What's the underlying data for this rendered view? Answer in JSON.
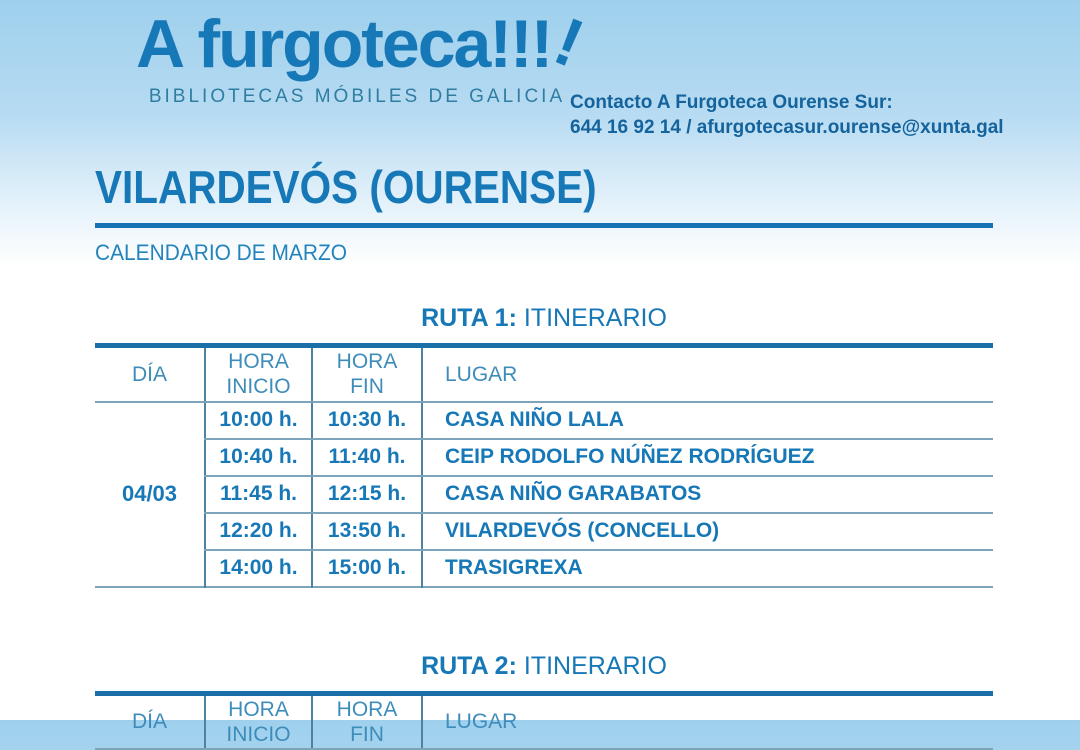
{
  "header": {
    "logo_text": "A furgoteca!!!",
    "logo_slant_mark": "!",
    "tagline": "BIBLIOTECAS MÓBILES DE GALICIA",
    "contact_label": "Contacto A Furgoteca Ourense Sur:",
    "contact_line2": "644 16 92 14 / afurgotecasur.ourense@xunta.gal"
  },
  "page": {
    "title": "VILARDEVÓS (OURENSE)",
    "subtitle": "CALENDARIO DE MARZO"
  },
  "routes": [
    {
      "heading_bold": "RUTA 1:",
      "heading_rest": " ITINERARIO",
      "columns": [
        "DÍA",
        "HORA\nINICIO",
        "HORA\nFIN",
        "LUGAR"
      ],
      "day": "04/03",
      "rows": [
        {
          "start": "10:00 h.",
          "end": "10:30 h.",
          "place": "CASA NIÑO LALA"
        },
        {
          "start": "10:40 h.",
          "end": "11:40 h.",
          "place": "CEIP RODOLFO NÚÑEZ RODRÍGUEZ"
        },
        {
          "start": "11:45 h.",
          "end": "12:15 h.",
          "place": "CASA NIÑO GARABATOS"
        },
        {
          "start": "12:20 h.",
          "end": "13:50 h.",
          "place": "VILARDEVÓS (CONCELLO)"
        },
        {
          "start": "14:00 h.",
          "end": "15:00 h.",
          "place": "TRASIGREXA"
        }
      ]
    },
    {
      "heading_bold": "RUTA 2:",
      "heading_rest": " ITINERARIO",
      "columns": [
        "DÍA",
        "HORA\nINICIO",
        "HORA\nFIN",
        "LUGAR"
      ]
    }
  ],
  "colors": {
    "brand_blue": "#1778b7",
    "tagline_teal": "#2f7da2",
    "contact_blue": "#14639c",
    "table_border_thick": "#1a6fa9",
    "table_line_thin": "#7da4b8",
    "background_top": "#9ed0ed"
  }
}
